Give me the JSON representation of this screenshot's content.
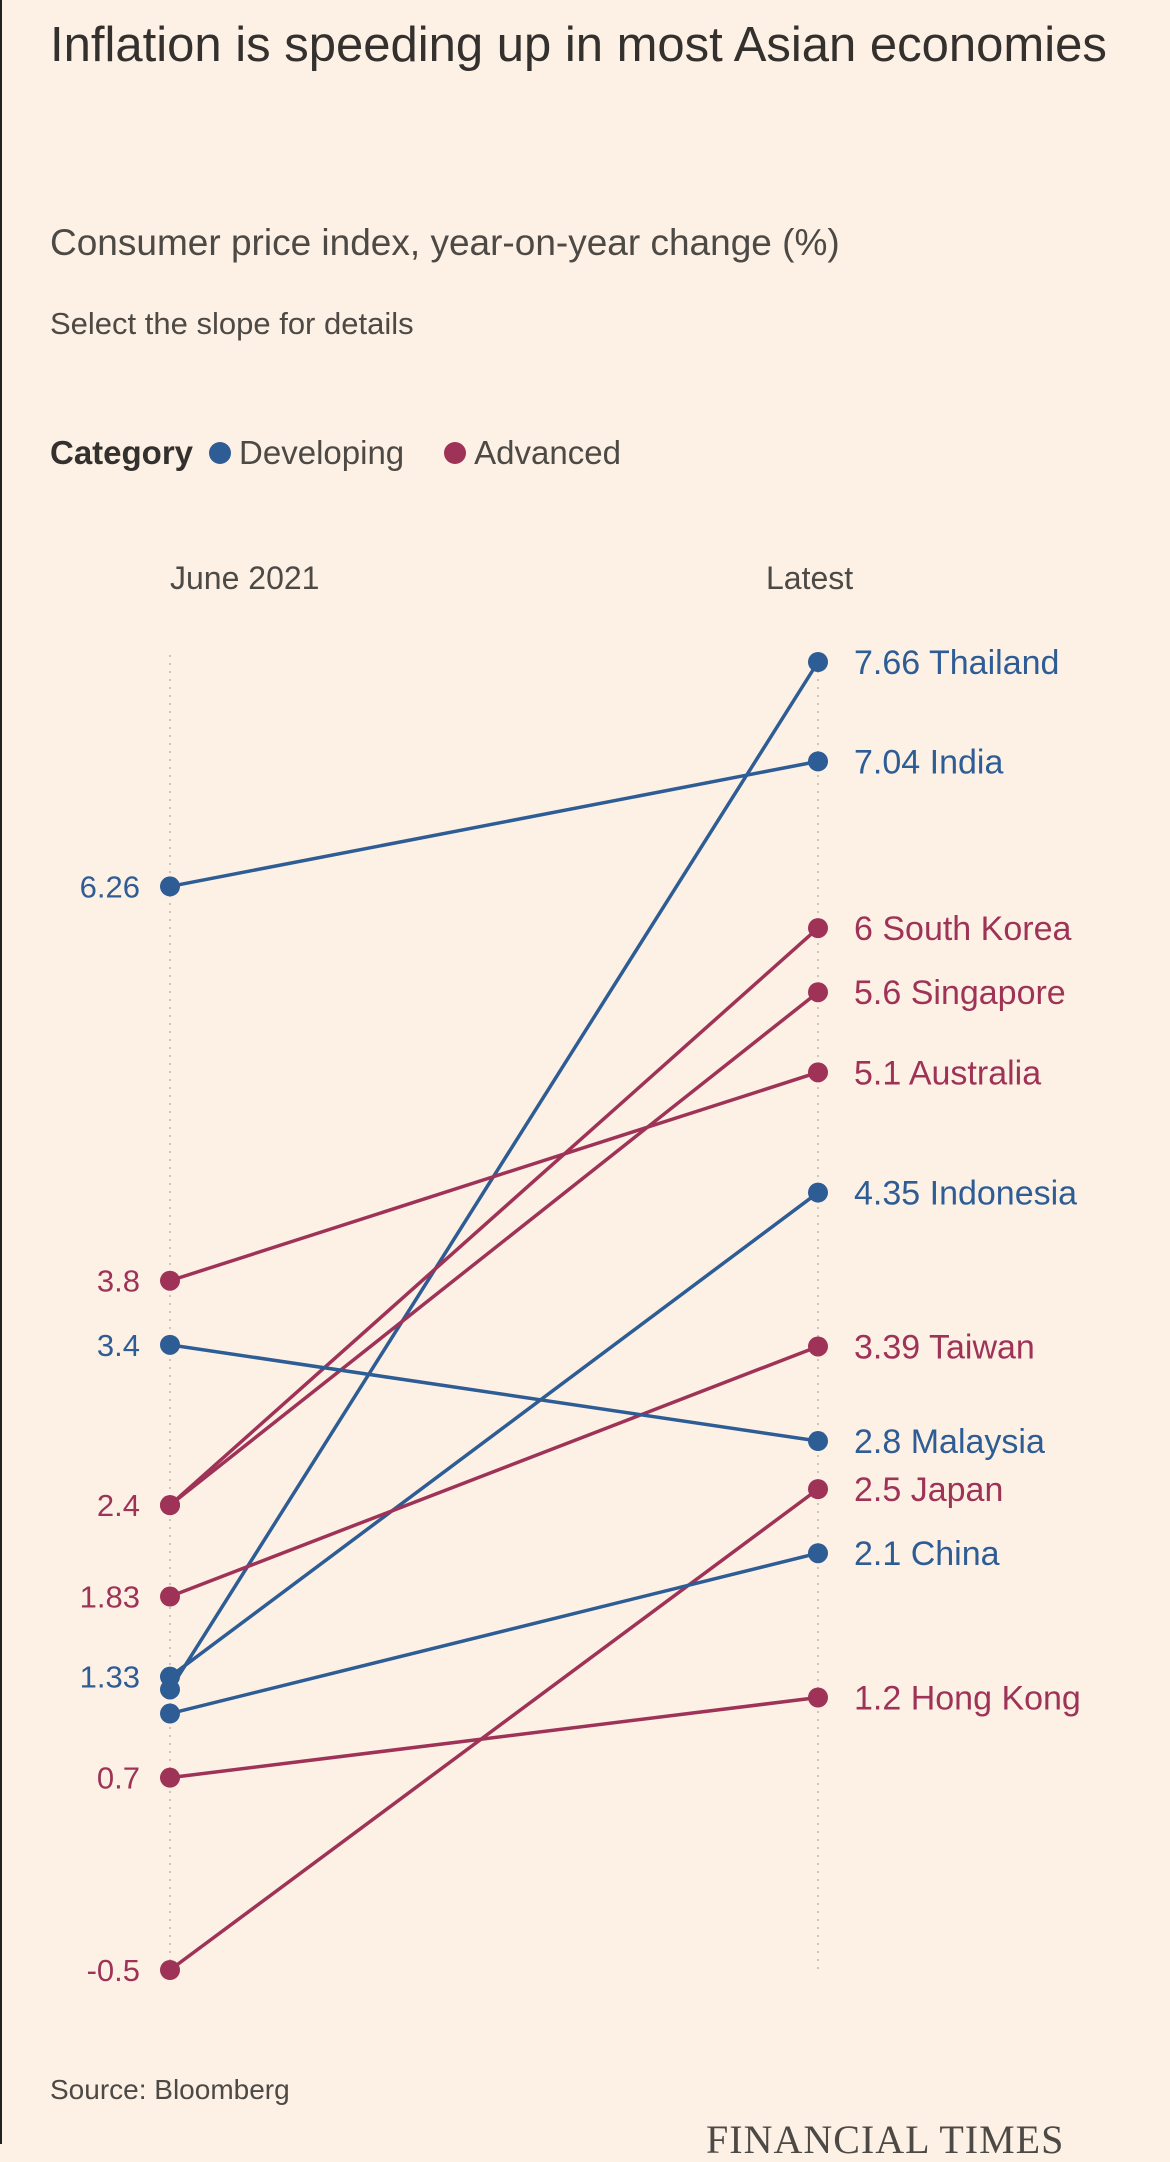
{
  "title": "Inflation is speeding up in most Asian economies",
  "subtitle": "Consumer price index, year-on-year change (%)",
  "instruction": "Select the slope for details",
  "legend": {
    "title": "Category",
    "items": [
      {
        "label": "Developing",
        "color": "#2e5c94"
      },
      {
        "label": "Advanced",
        "color": "#9e3357"
      }
    ]
  },
  "columns": {
    "left": "June 2021",
    "right": "Latest"
  },
  "source": "Source: Bloomberg",
  "brand": "FINANCIAL TIMES",
  "chart_data": {
    "type": "slope",
    "title": "Inflation is speeding up in most Asian economies",
    "x": [
      "June 2021",
      "Latest"
    ],
    "series": [
      {
        "name": "Thailand",
        "category": "Developing",
        "values": [
          1.25,
          7.66
        ],
        "start_label": "",
        "end_label": "7.66 Thailand"
      },
      {
        "name": "India",
        "category": "Developing",
        "values": [
          6.26,
          7.04
        ],
        "start_label": "6.26",
        "end_label": "7.04 India"
      },
      {
        "name": "South Korea",
        "category": "Advanced",
        "values": [
          2.4,
          6
        ],
        "start_label": "2.4",
        "end_label": "6 South Korea"
      },
      {
        "name": "Singapore",
        "category": "Advanced",
        "values": [
          2.4,
          5.6
        ],
        "start_label": "",
        "end_label": "5.6 Singapore"
      },
      {
        "name": "Australia",
        "category": "Advanced",
        "values": [
          3.8,
          5.1
        ],
        "start_label": "3.8",
        "end_label": "5.1 Australia"
      },
      {
        "name": "Indonesia",
        "category": "Developing",
        "values": [
          1.33,
          4.35
        ],
        "start_label": "1.33",
        "end_label": "4.35 Indonesia"
      },
      {
        "name": "Taiwan",
        "category": "Advanced",
        "values": [
          1.83,
          3.39
        ],
        "start_label": "1.83",
        "end_label": "3.39 Taiwan"
      },
      {
        "name": "Malaysia",
        "category": "Developing",
        "values": [
          3.4,
          2.8
        ],
        "start_label": "3.4",
        "end_label": "2.8 Malaysia"
      },
      {
        "name": "Japan",
        "category": "Advanced",
        "values": [
          -0.5,
          2.5
        ],
        "start_label": "-0.5",
        "end_label": "2.5 Japan"
      },
      {
        "name": "China",
        "category": "Developing",
        "values": [
          1.1,
          2.1
        ],
        "start_label": "",
        "end_label": "2.1 China"
      },
      {
        "name": "Hong Kong",
        "category": "Advanced",
        "values": [
          0.7,
          1.2
        ],
        "start_label": "0.7",
        "end_label": "1.2 Hong Kong"
      }
    ],
    "category_colors": {
      "Developing": "#2e5c94",
      "Advanced": "#9e3357"
    },
    "ylim": [
      -0.5,
      7.66
    ]
  }
}
